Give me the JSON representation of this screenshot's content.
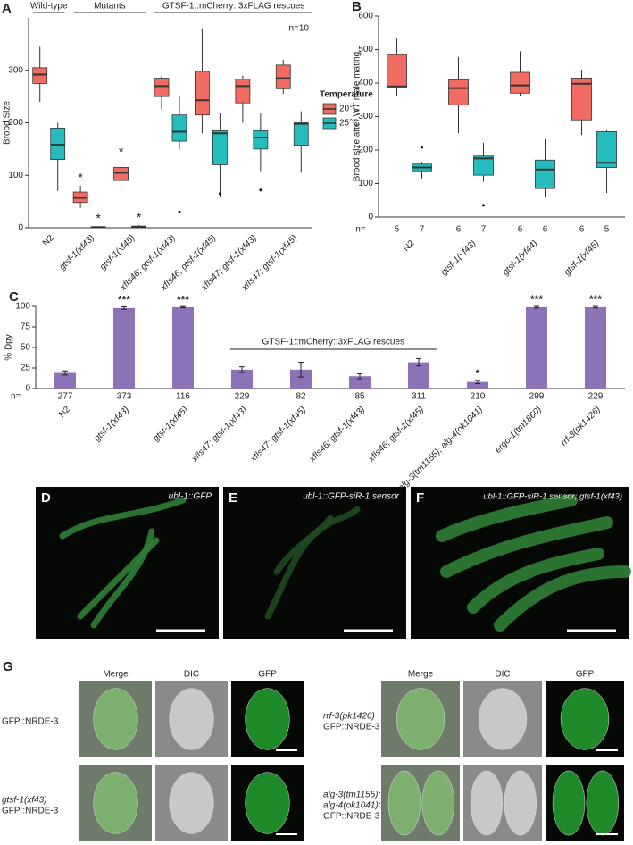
{
  "chart_data": [
    {
      "type": "box",
      "label": "A",
      "ylabel": "Brood Size",
      "annotation": "n=10",
      "groups": [
        "Wild-type",
        "Mutants",
        "GTSF-1::mCherry::3xFLAG rescues"
      ],
      "categories": [
        "N2",
        "gtsf-1(xf43)",
        "gtsf-1(xf45)",
        "xfIs46; gtsf-1(xf43)",
        "xfIs46; gtsf-1(xf45)",
        "xfIs47; gtsf-1(xf43)",
        "xfIs47; gtsf-1(xf45)"
      ],
      "ylim": [
        0,
        400
      ],
      "yticks": [
        0,
        100,
        200,
        300
      ],
      "legend_title": "Temperature",
      "series": [
        {
          "name": "20°C",
          "color": "#f26b63",
          "min": [
            240,
            38,
            75,
            225,
            180,
            200,
            255
          ],
          "q1": [
            275,
            48,
            90,
            250,
            215,
            238,
            265
          ],
          "median": [
            292,
            57,
            105,
            270,
            243,
            270,
            285
          ],
          "q3": [
            305,
            68,
            115,
            285,
            298,
            283,
            310
          ],
          "max": [
            345,
            80,
            130,
            290,
            380,
            290,
            320
          ],
          "outliers": [
            [],
            [],
            [],
            [],
            [],
            [],
            []
          ],
          "labels": [
            null,
            "*",
            "*",
            null,
            null,
            null,
            null
          ]
        },
        {
          "name": "25°C",
          "color": "#24bcbc",
          "min": [
            70,
            0,
            0,
            150,
            58,
            108,
            105
          ],
          "q1": [
            130,
            0,
            0,
            165,
            120,
            150,
            157
          ],
          "median": [
            158,
            1,
            2,
            183,
            180,
            172,
            198
          ],
          "q3": [
            190,
            2,
            3,
            215,
            185,
            185,
            200
          ],
          "max": [
            200,
            3,
            5,
            250,
            218,
            218,
            222
          ],
          "outliers": [
            [],
            [],
            [],
            [
              30
            ],
            [
              65
            ],
            [
              72
            ],
            []
          ],
          "labels": [
            null,
            "*",
            "*",
            null,
            null,
            null,
            null
          ]
        }
      ]
    },
    {
      "type": "box",
      "label": "B",
      "ylabel": "Brood size after WT male mating",
      "n_label": "n=",
      "categories": [
        "N2",
        "gtsf-1(xf43)",
        "gtsf-1(xf44)",
        "gtsf-1(xf45)"
      ],
      "ylim": [
        0,
        600
      ],
      "yticks": [
        0,
        100,
        200,
        300,
        400,
        500,
        600
      ],
      "series": [
        {
          "color": "#f26b63",
          "min": [
            360,
            250,
            360,
            245
          ],
          "q1": [
            385,
            335,
            370,
            290
          ],
          "median": [
            390,
            385,
            393,
            398
          ],
          "q3": [
            485,
            410,
            432,
            415
          ],
          "max": [
            535,
            478,
            495,
            440
          ],
          "outliers": [
            [],
            [],
            [],
            []
          ],
          "n": [
            5,
            6,
            6,
            6
          ]
        },
        {
          "color": "#24bcbc",
          "min": [
            115,
            105,
            60,
            72
          ],
          "q1": [
            138,
            125,
            85,
            148
          ],
          "median": [
            148,
            175,
            142,
            162
          ],
          "q3": [
            158,
            182,
            170,
            255
          ],
          "max": [
            165,
            222,
            232,
            262
          ],
          "outliers": [
            [
              208
            ],
            [
              35
            ],
            [],
            []
          ],
          "n": [
            7,
            7,
            6,
            5
          ]
        }
      ]
    },
    {
      "type": "bar",
      "label": "C",
      "ylabel": "% Dpy",
      "n_label": "n=",
      "bracket": "GTSF-1::mCherry::3xFLAG rescues",
      "categories": [
        "N2",
        "gtsf-1(xf43)",
        "gtsf-1(xf45)",
        "xfIs47; gtsf-1(xf43)",
        "xfIs47; gtsf-1(xf45)",
        "xfIs46; gtsf-1(xf43)",
        "xfIs46; gtsf-1(xf45)",
        "alg-3(tm1155); alg-4(ok1041)",
        "ergo-1(tm1860)",
        "rrf-3(pk1426)"
      ],
      "values": [
        19,
        98,
        99,
        23,
        23,
        15,
        32,
        8,
        99,
        99
      ],
      "errors": [
        2.5,
        1.5,
        0.8,
        3.5,
        9,
        3,
        4.5,
        2,
        1,
        1
      ],
      "significance": [
        "",
        "***",
        "***",
        null,
        null,
        null,
        null,
        "*",
        "***",
        "***"
      ],
      "n": [
        277,
        373,
        116,
        229,
        82,
        85,
        311,
        210,
        299,
        229
      ],
      "color": "#8e72b8",
      "ylim": [
        0,
        100
      ],
      "yticks": [
        0,
        25,
        50,
        75,
        100
      ]
    }
  ],
  "image_panels": [
    {
      "letter": "D",
      "caption": "ubl-1::GFP"
    },
    {
      "letter": "E",
      "caption": "ubl-1::GFP-siR-1 sensor"
    },
    {
      "letter": "F",
      "caption": "ubl-1::GFP-siR-1 sensor; gtsf-1(xf43)"
    }
  ],
  "panel_g": {
    "letter": "G",
    "columns": [
      "Merge",
      "DIC",
      "GFP"
    ],
    "rows": [
      {
        "lines": [
          "GFP::NRDE-3"
        ]
      },
      {
        "lines": [
          "gtsf-1(xf43)",
          "GFP::NRDE-3"
        ]
      },
      {
        "lines": [
          "rrf-3(pk1426)",
          "GFP::NRDE-3"
        ]
      },
      {
        "lines": [
          "alg-3(tm1155);",
          "alg-4(ok1041);",
          "GFP::NRDE-3"
        ]
      }
    ]
  }
}
